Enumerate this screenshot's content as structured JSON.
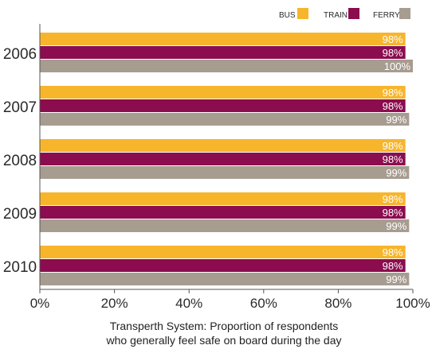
{
  "chart_data": {
    "type": "bar",
    "orientation": "horizontal",
    "categories": [
      "2006",
      "2007",
      "2008",
      "2009",
      "2010"
    ],
    "series": [
      {
        "name": "BUS",
        "color": "#f7b52c",
        "values": [
          98,
          98,
          98,
          98,
          98
        ],
        "labels": [
          "98%",
          "98%",
          "98%",
          "98%",
          "98%"
        ]
      },
      {
        "name": "TRAIN",
        "color": "#8b0d4f",
        "values": [
          98,
          98,
          98,
          98,
          98
        ],
        "labels": [
          "98%",
          "98%",
          "98%",
          "98%",
          "98%"
        ]
      },
      {
        "name": "FERRY",
        "color": "#a79c90",
        "values": [
          100,
          99,
          99,
          99,
          99
        ],
        "labels": [
          "100%",
          "99%",
          "99%",
          "99%",
          "99%"
        ]
      }
    ],
    "xlim": [
      0,
      100
    ],
    "xticks": [
      0,
      20,
      40,
      60,
      80,
      100
    ],
    "xtick_labels": [
      "0%",
      "20%",
      "40%",
      "60%",
      "80%",
      "100%"
    ],
    "xlabel": [
      "Transperth System: Proportion of respondents",
      "who generally feel safe on board during the day"
    ],
    "ylabel": "",
    "legend": "top-right",
    "grid": false
  }
}
